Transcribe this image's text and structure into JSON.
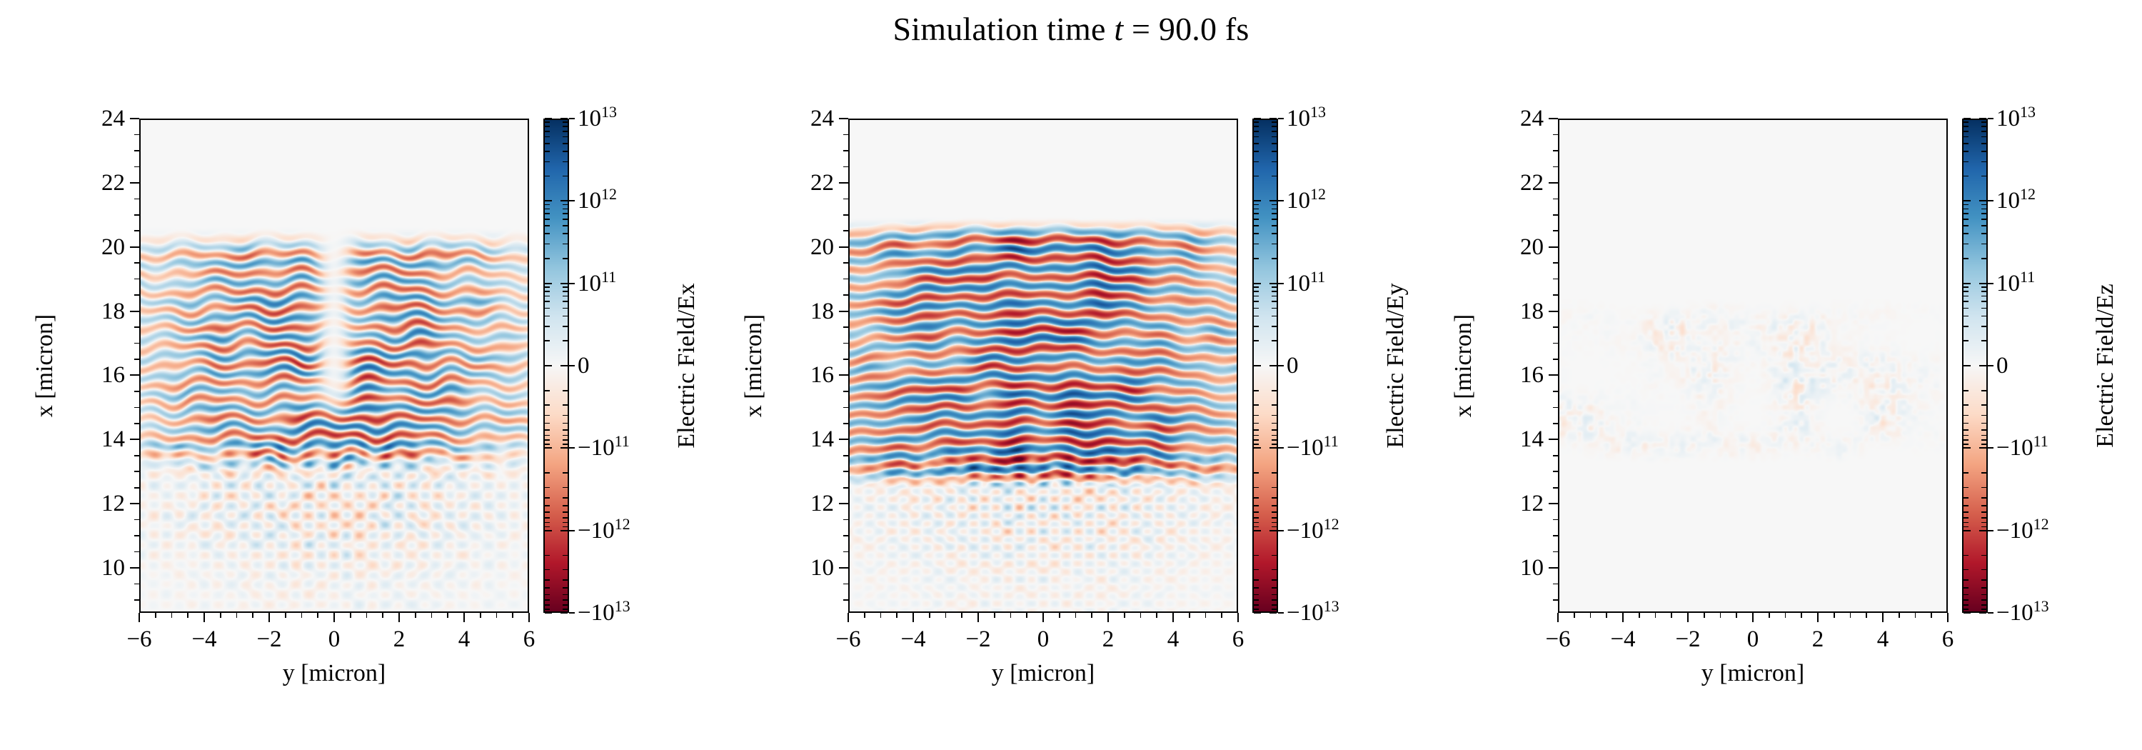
{
  "figure": {
    "title": {
      "prefix": "Simulation time ",
      "variable": "t",
      "suffix": " = 90.0 fs"
    },
    "background": "#ffffff",
    "text_color": "#000000"
  },
  "colormap_rdbu": [
    "#67001f",
    "#b2182b",
    "#d6604d",
    "#f4a582",
    "#fddbc7",
    "#f7f7f7",
    "#d1e5f0",
    "#92c5de",
    "#4393c3",
    "#2166ac",
    "#053061"
  ],
  "chart_data": [
    {
      "type": "heatmap",
      "field": "Ex",
      "xlabel": "y [micron]",
      "ylabel": "x [micron]",
      "xlim": [
        -6,
        6
      ],
      "ylim": [
        8.6,
        24
      ],
      "x_ticks": [
        -6,
        -4,
        -2,
        0,
        2,
        4,
        6
      ],
      "x_tick_labels": [
        "−6",
        "−4",
        "−2",
        "0",
        "2",
        "4",
        "6"
      ],
      "y_ticks": [
        10,
        12,
        14,
        16,
        18,
        20,
        22,
        24
      ],
      "y_tick_labels": [
        "10",
        "12",
        "14",
        "16",
        "18",
        "20",
        "22",
        "24"
      ],
      "grid": false,
      "colorbar": {
        "label": "Electric Field/Ex",
        "scale": "symlog",
        "colormap": "RdBu",
        "vmin": -10000000000000.0,
        "vmax": 10000000000000.0,
        "ticks": [
          {
            "v": 10000000000000.0,
            "sign": "",
            "base": "10",
            "exp": "13"
          },
          {
            "v": 1000000000000.0,
            "sign": "",
            "base": "10",
            "exp": "12"
          },
          {
            "v": 100000000000.0,
            "sign": "",
            "base": "10",
            "exp": "11"
          },
          {
            "v": 0,
            "sign": "",
            "base": "0",
            "exp": ""
          },
          {
            "v": -100000000000.0,
            "sign": "−",
            "base": "10",
            "exp": "11"
          },
          {
            "v": -1000000000000.0,
            "sign": "−",
            "base": "10",
            "exp": "12"
          },
          {
            "v": -10000000000000.0,
            "sign": "−",
            "base": "10",
            "exp": "13"
          }
        ]
      },
      "field_summary": {
        "description": "Longitudinal field: alternating horizontal red/blue standing-wave bands between x≈13 and x≈20.6 micron with a pale nodal seam at y=0 in the upper bands; weaker criss-cross V-shaped interference fringes below x≈13 fading toward x≈9.",
        "band_region_x_micron": [
          13,
          20.6
        ],
        "band_wavelength_micron": 0.57,
        "peak_magnitude": "~1e13"
      },
      "pattern": {
        "seed": 1,
        "band": {
          "x0": 12.6,
          "x1": 13.9,
          "x2": 19.6,
          "x3": 20.65,
          "period": 0.57,
          "phase0": 0.0,
          "amp": 0.85,
          "ysig": 4.8,
          "curv": 0.12,
          "wiggle": 0.085,
          "gamma": 0.85,
          "node": true,
          "nodew": 0.38
        },
        "lower": {
          "amp": 0.33,
          "x1": 13.3,
          "diag": 0.78,
          "period": 0.62
        },
        "speckle": {
          "amp": 0
        }
      }
    },
    {
      "type": "heatmap",
      "field": "Ey",
      "xlabel": "y [micron]",
      "ylabel": "x [micron]",
      "xlim": [
        -6,
        6
      ],
      "ylim": [
        8.6,
        24
      ],
      "x_ticks": [
        -6,
        -4,
        -2,
        0,
        2,
        4,
        6
      ],
      "x_tick_labels": [
        "−6",
        "−4",
        "−2",
        "0",
        "2",
        "4",
        "6"
      ],
      "y_ticks": [
        10,
        12,
        14,
        16,
        18,
        20,
        22,
        24
      ],
      "y_tick_labels": [
        "10",
        "12",
        "14",
        "16",
        "18",
        "20",
        "22",
        "24"
      ],
      "grid": false,
      "colorbar": {
        "label": "Electric Field/Ey",
        "scale": "symlog",
        "colormap": "RdBu",
        "vmin": -10000000000000.0,
        "vmax": 10000000000000.0,
        "ticks": [
          {
            "v": 10000000000000.0,
            "sign": "",
            "base": "10",
            "exp": "13"
          },
          {
            "v": 1000000000000.0,
            "sign": "",
            "base": "10",
            "exp": "12"
          },
          {
            "v": 100000000000.0,
            "sign": "",
            "base": "10",
            "exp": "11"
          },
          {
            "v": 0,
            "sign": "",
            "base": "0",
            "exp": ""
          },
          {
            "v": -100000000000.0,
            "sign": "−",
            "base": "10",
            "exp": "11"
          },
          {
            "v": -1000000000000.0,
            "sign": "−",
            "base": "10",
            "exp": "12"
          },
          {
            "v": -10000000000000.0,
            "sign": "−",
            "base": "10",
            "exp": "13"
          }
        ]
      },
      "field_summary": {
        "description": "Main transverse laser field: strong saturated horizontal red/blue bands spanning the full width between x≈12.7 and x≈21 micron, slightly bowed downward at the edges; speckled diagonal interference mesh below x≈12.7.",
        "band_region_x_micron": [
          12.7,
          21.0
        ],
        "band_wavelength_micron": 0.57,
        "peak_magnitude": "~1e13"
      },
      "pattern": {
        "seed": 2,
        "band": {
          "x0": 12.35,
          "x1": 13.1,
          "x2": 20.2,
          "x3": 20.95,
          "period": 0.57,
          "phase0": 0.25,
          "amp": 0.97,
          "ysig": 5.6,
          "curv": 0.38,
          "wiggle": 0.05,
          "gamma": 0.6,
          "node": false,
          "nodew": 0
        },
        "lower": {
          "amp": 0.3,
          "x1": 12.9,
          "diag": 0.7,
          "period": 0.5
        },
        "speckle": {
          "amp": 0
        }
      }
    },
    {
      "type": "heatmap",
      "field": "Ez",
      "xlabel": "y [micron]",
      "ylabel": "x [micron]",
      "xlim": [
        -6,
        6
      ],
      "ylim": [
        8.6,
        24
      ],
      "x_ticks": [
        -6,
        -4,
        -2,
        0,
        2,
        4,
        6
      ],
      "x_tick_labels": [
        "−6",
        "−4",
        "−2",
        "0",
        "2",
        "4",
        "6"
      ],
      "y_ticks": [
        10,
        12,
        14,
        16,
        18,
        20,
        22,
        24
      ],
      "y_tick_labels": [
        "10",
        "12",
        "14",
        "16",
        "18",
        "20",
        "22",
        "24"
      ],
      "grid": false,
      "colorbar": {
        "label": "Electric Field/Ez",
        "scale": "symlog",
        "colormap": "RdBu",
        "vmin": -10000000000000.0,
        "vmax": 10000000000000.0,
        "ticks": [
          {
            "v": 10000000000000.0,
            "sign": "",
            "base": "10",
            "exp": "13"
          },
          {
            "v": 1000000000000.0,
            "sign": "",
            "base": "10",
            "exp": "12"
          },
          {
            "v": 100000000000.0,
            "sign": "",
            "base": "10",
            "exp": "11"
          },
          {
            "v": 0,
            "sign": "",
            "base": "0",
            "exp": ""
          },
          {
            "v": -100000000000.0,
            "sign": "−",
            "base": "10",
            "exp": "11"
          },
          {
            "v": -1000000000000.0,
            "sign": "−",
            "base": "10",
            "exp": "12"
          },
          {
            "v": -10000000000000.0,
            "sign": "−",
            "base": "10",
            "exp": "13"
          }
        ]
      },
      "field_summary": {
        "description": "Out-of-plane field: nearly zero everywhere; only faint low-amplitude red/blue speckle patches between x≈13.5 and x≈18.3 micron.",
        "band_region_x_micron": null,
        "band_wavelength_micron": null,
        "peak_magnitude": "≲1e11"
      },
      "pattern": {
        "seed": 3,
        "band": {
          "amp": 0
        },
        "lower": {
          "amp": 0
        },
        "speckle": {
          "amp": 0.17,
          "x0": 13.2,
          "x1": 18.5
        }
      }
    }
  ]
}
